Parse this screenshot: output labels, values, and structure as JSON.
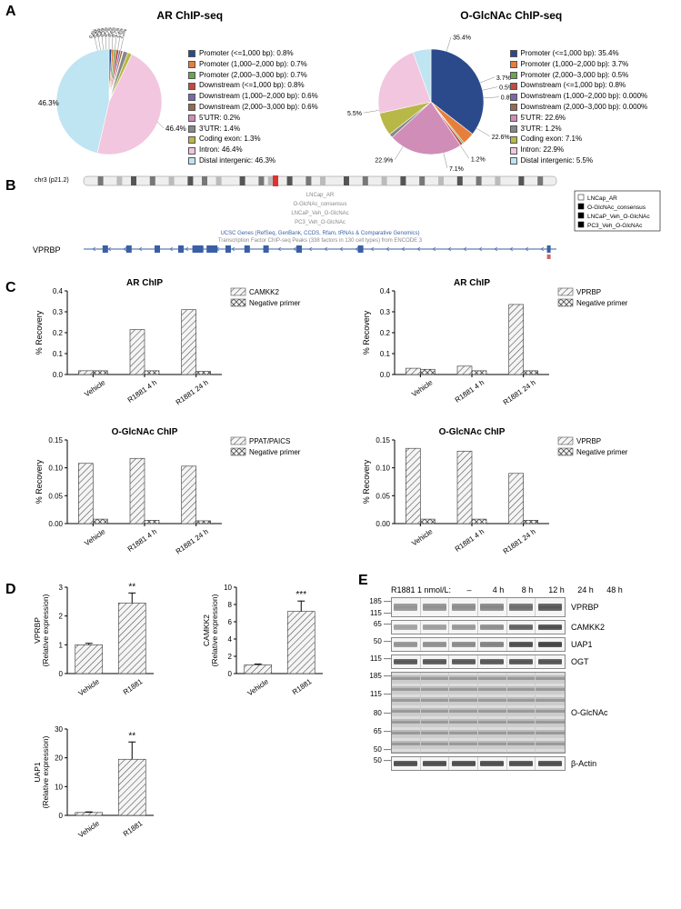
{
  "panelA": {
    "left": {
      "title": "AR ChIP-seq",
      "slices": [
        {
          "label": "Promoter (<=1,000 bp): 0.8%",
          "value": 0.8,
          "color": "#2b4a8b"
        },
        {
          "label": "Promoter (1,000–2,000 bp): 0.7%",
          "value": 0.7,
          "color": "#e77e3c"
        },
        {
          "label": "Promoter (2,000–3,000 bp): 0.7%",
          "value": 0.7,
          "color": "#6aa551"
        },
        {
          "label": "Downstream (<=1,000 bp): 0.8%",
          "value": 0.8,
          "color": "#c24a3f"
        },
        {
          "label": "Downstream (1,000–2,000 bp): 0.6%",
          "value": 0.6,
          "color": "#7b6aa8"
        },
        {
          "label": "Downstream (2,000–3,000 bp): 0.6%",
          "value": 0.6,
          "color": "#9a6a4a"
        },
        {
          "label": "5'UTR: 0.2%",
          "value": 0.2,
          "color": "#cf8db8"
        },
        {
          "label": "3'UTR: 1.4%",
          "value": 1.4,
          "color": "#888888"
        },
        {
          "label": "Coding exon: 1.3%",
          "value": 1.3,
          "color": "#b8b848"
        },
        {
          "label": "Intron: 46.4%",
          "value": 46.4,
          "color": "#f2c6de"
        },
        {
          "label": "Distal intergenic: 46.3%",
          "value": 46.3,
          "color": "#bfe4f2"
        }
      ],
      "outside_labels": [
        {
          "text": "46.3%",
          "pos": "left"
        },
        {
          "text": "46.4%",
          "pos": "right"
        }
      ],
      "top_labels": [
        "0.6%",
        "0.8%",
        "0.8%",
        "0.2%",
        "0.7%",
        "0.6%",
        "0.7%",
        "1.4%",
        "1.3%"
      ]
    },
    "right": {
      "title": "O-GlcNAc ChIP-seq",
      "slices": [
        {
          "label": "Promoter (<=1,000 bp): 35.4%",
          "value": 35.4,
          "color": "#2b4a8b"
        },
        {
          "label": "Promoter (1,000–2,000 bp): 3.7%",
          "value": 3.7,
          "color": "#e77e3c"
        },
        {
          "label": "Promoter (2,000–3,000 bp): 0.5%",
          "value": 0.5,
          "color": "#6aa551"
        },
        {
          "label": "Downstream (<=1,000 bp): 0.8%",
          "value": 0.8,
          "color": "#c24a3f"
        },
        {
          "label": "Downstream (1,000–2,000 bp): 0.000%",
          "value": 0.001,
          "color": "#7b6aa8"
        },
        {
          "label": "Downstream (2,000–3,000 bp): 0.000%",
          "value": 0.001,
          "color": "#9a6a4a"
        },
        {
          "label": "5'UTR: 22.6%",
          "value": 22.6,
          "color": "#cf8db8"
        },
        {
          "label": "3'UTR: 1.2%",
          "value": 1.2,
          "color": "#888888"
        },
        {
          "label": "Coding exon: 7.1%",
          "value": 7.1,
          "color": "#b8b848"
        },
        {
          "label": "Intron: 22.9%",
          "value": 22.9,
          "color": "#f2c6de"
        },
        {
          "label": "Distal intergenic: 5.5%",
          "value": 5.5,
          "color": "#bfe4f2"
        }
      ],
      "outside_labels": [
        {
          "text": "35.4%",
          "pos": "right-top"
        },
        {
          "text": "3.7%",
          "pos": "right"
        },
        {
          "text": "0.5%",
          "pos": "right-low"
        },
        {
          "text": "0.8%",
          "pos": "right-bot"
        },
        {
          "text": "22.6%",
          "pos": "bottom"
        },
        {
          "text": "1.2%",
          "pos": "left-bot"
        },
        {
          "text": "7.1%",
          "pos": "left"
        },
        {
          "text": "22.9%",
          "pos": "left-top"
        },
        {
          "text": "5.5%",
          "pos": "top"
        }
      ]
    }
  },
  "panelB": {
    "gene_label": "VPRBP",
    "chr_label": "chr3 (p21.2)",
    "tracks": [
      "LNCap_AR",
      "O-GlcNAc_consensus",
      "LNCaP_Veh_O-GlcNAc",
      "PC3_Veh_O-GlcNAc"
    ],
    "subtitle": "UCSC Genes (RefSeq, GenBank, CCDS, Rfam, tRNAs & Comparative Genomics)",
    "subtitle2": "Transcription Factor ChIP-seq Peaks (338 factors in 130 cell types) from ENCODE 3"
  },
  "panelC": {
    "charts": [
      {
        "title": "AR ChIP",
        "legend": [
          "CAMKK2",
          "Negative primer"
        ],
        "ymax": 0.4,
        "ystep": 0.1,
        "cats": [
          "Vehicle",
          "R1881 4 h",
          "R1881 24 h"
        ],
        "series": [
          [
            0.018,
            0.215,
            0.31
          ],
          [
            0.018,
            0.018,
            0.015
          ]
        ]
      },
      {
        "title": "AR ChIP",
        "legend": [
          "VPRBP",
          "Negative primer"
        ],
        "ymax": 0.4,
        "ystep": 0.1,
        "cats": [
          "Vehicle",
          "R1881 4 h",
          "R1881 24 h"
        ],
        "series": [
          [
            0.03,
            0.04,
            0.335
          ],
          [
            0.025,
            0.018,
            0.018
          ]
        ]
      },
      {
        "title": "O-GlcNAc ChIP",
        "legend": [
          "PPAT/PAICS",
          "Negative primer"
        ],
        "ymax": 0.15,
        "ystep": 0.05,
        "cats": [
          "Vehicle",
          "R1881 4 h",
          "R1881 24 h"
        ],
        "series": [
          [
            0.108,
            0.117,
            0.103
          ],
          [
            0.008,
            0.006,
            0.005
          ]
        ]
      },
      {
        "title": "O-GlcNAc ChIP",
        "legend": [
          "VPRBP",
          "Negative primer"
        ],
        "ymax": 0.15,
        "ystep": 0.05,
        "cats": [
          "Vehicle",
          "R1881 4 h",
          "R1881 24 h"
        ],
        "series": [
          [
            0.135,
            0.13,
            0.09
          ],
          [
            0.008,
            0.008,
            0.006
          ]
        ]
      }
    ],
    "ylabel": "% Recovery",
    "patterns": [
      "hatch",
      "cross"
    ]
  },
  "panelD": {
    "charts": [
      {
        "ylabel": "VPRBP\n(Relative expression)",
        "ymax": 3,
        "ystep": 1,
        "cats": [
          "Vehicle",
          "R1881"
        ],
        "vals": [
          1.0,
          2.45
        ],
        "err": [
          0.05,
          0.35
        ],
        "sig": "**"
      },
      {
        "ylabel": "CAMKK2\n(Relative expression)",
        "ymax": 10,
        "ystep": 2,
        "cats": [
          "Vehicle",
          "R1881"
        ],
        "vals": [
          1.0,
          7.2
        ],
        "err": [
          0.1,
          1.2
        ],
        "sig": "***"
      },
      {
        "ylabel": "UAP1\n(Relative expression)",
        "ymax": 30,
        "ystep": 10,
        "cats": [
          "Vehicle",
          "R1881"
        ],
        "vals": [
          1.0,
          19.5
        ],
        "err": [
          0.2,
          6.0
        ],
        "sig": "**"
      }
    ]
  },
  "panelE": {
    "header": "R1881 1 nmol/L:",
    "timepoints": [
      "–",
      "4 h",
      "8 h",
      "12 h",
      "24 h",
      "48 h"
    ],
    "lane_width": 32,
    "rows": [
      {
        "label": "VPRBP",
        "mw": [
          "185",
          "115"
        ],
        "h": 22,
        "bands": [
          0.35,
          0.38,
          0.4,
          0.45,
          0.62,
          0.78
        ]
      },
      {
        "label": "CAMKK2",
        "mw": [
          "65"
        ],
        "h": 16,
        "bands": [
          0.25,
          0.28,
          0.32,
          0.4,
          0.7,
          0.85
        ]
      },
      {
        "label": "UAP1",
        "mw": [
          "50"
        ],
        "h": 16,
        "bands": [
          0.35,
          0.38,
          0.42,
          0.48,
          0.85,
          0.92
        ]
      },
      {
        "label": "OGT",
        "mw": [
          "115"
        ],
        "h": 16,
        "bands": [
          0.78,
          0.78,
          0.78,
          0.78,
          0.8,
          0.8
        ]
      },
      {
        "label": "O-GlcNAc",
        "mw": [
          "185",
          "115",
          "80",
          "65",
          "50"
        ],
        "h": 90,
        "bands": [
          0.5,
          0.5,
          0.5,
          0.5,
          0.5,
          0.5
        ],
        "smear": true
      },
      {
        "label": "β-Actin",
        "mw": [
          "50"
        ],
        "h": 16,
        "bands": [
          0.85,
          0.85,
          0.85,
          0.85,
          0.85,
          0.85
        ]
      }
    ]
  }
}
